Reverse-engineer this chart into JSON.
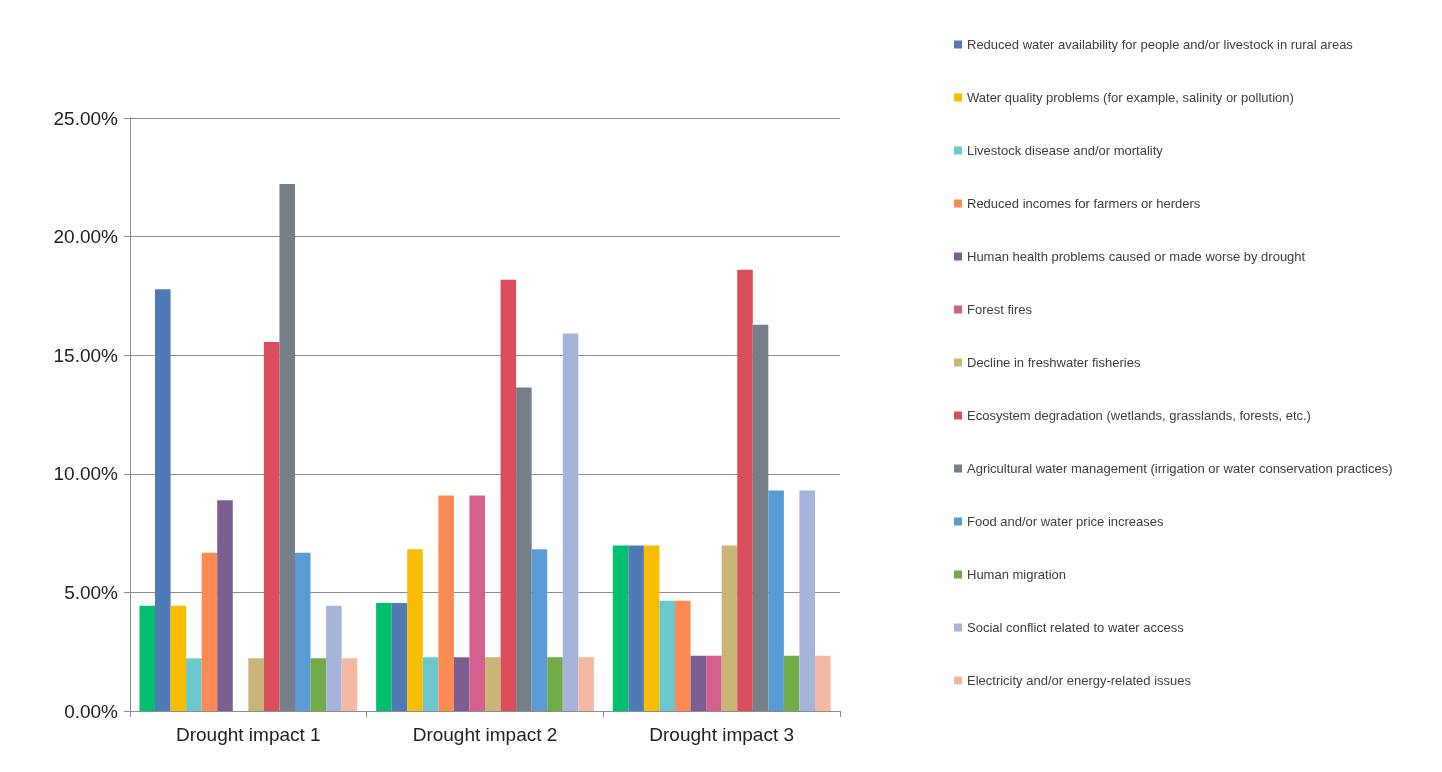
{
  "chart_data": {
    "type": "bar",
    "categories": [
      "Drought impact 1",
      "Drought impact 2",
      "Drought impact 3"
    ],
    "series": [
      {
        "color": "#00bf6f",
        "values": [
          4.44,
          4.55,
          6.98
        ]
      },
      {
        "name": "Reduced water availability for people and/or livestock in rural areas",
        "color": "#4e7ab5",
        "values": [
          17.78,
          4.55,
          6.98
        ]
      },
      {
        "name": "Water quality problems (for example, salinity or pollution)",
        "color": "#f8bc00",
        "values": [
          4.44,
          6.82,
          6.98
        ]
      },
      {
        "name": "Livestock disease and/or mortality",
        "color": "#6cc8cd",
        "values": [
          2.22,
          2.27,
          4.65
        ]
      },
      {
        "name": "Reduced incomes for farmers or herders",
        "color": "#fd8a52",
        "values": [
          6.67,
          9.09,
          4.65
        ]
      },
      {
        "name": "Human health problems caused or made worse by drought",
        "color": "#7b5e91",
        "values": [
          8.89,
          2.27,
          2.33
        ]
      },
      {
        "name": "Forest fires",
        "color": "#d5608d",
        "values": [
          null,
          9.09,
          2.33
        ]
      },
      {
        "name": "Decline in freshwater fisheries",
        "color": "#c8b577",
        "values": [
          2.22,
          2.27,
          6.98
        ]
      },
      {
        "name": "Ecosystem degradation (wetlands, grasslands, forests, etc.)",
        "color": "#db4e5c",
        "values": [
          15.56,
          18.18,
          18.6
        ]
      },
      {
        "name": "Agricultural water management (irrigation or water conservation practices)",
        "color": "#767f87",
        "values": [
          22.22,
          13.64,
          16.28
        ]
      },
      {
        "name": "Food and/or water price increases",
        "color": "#5b9bd5",
        "values": [
          6.67,
          6.82,
          9.3
        ]
      },
      {
        "name": "Human migration",
        "color": "#70ab47",
        "values": [
          2.22,
          2.27,
          2.33
        ]
      },
      {
        "name": "Social conflict related to water access",
        "color": "#a6b4db",
        "values": [
          4.44,
          15.91,
          9.3
        ]
      },
      {
        "name": "Electricity and/or energy-related issues",
        "color": "#f4b8a3",
        "values": [
          2.22,
          2.27,
          2.33
        ]
      }
    ],
    "ylim": [
      0,
      25
    ],
    "yticks": [
      {
        "value": 0,
        "label": "0.00%"
      },
      {
        "value": 5,
        "label": "5.00%"
      },
      {
        "value": 10,
        "label": "10.00%"
      },
      {
        "value": 15,
        "label": "15.00%"
      },
      {
        "value": 20,
        "label": "20.00%"
      },
      {
        "value": 25,
        "label": "25.00%"
      }
    ],
    "grid": "y",
    "legend": "right"
  }
}
